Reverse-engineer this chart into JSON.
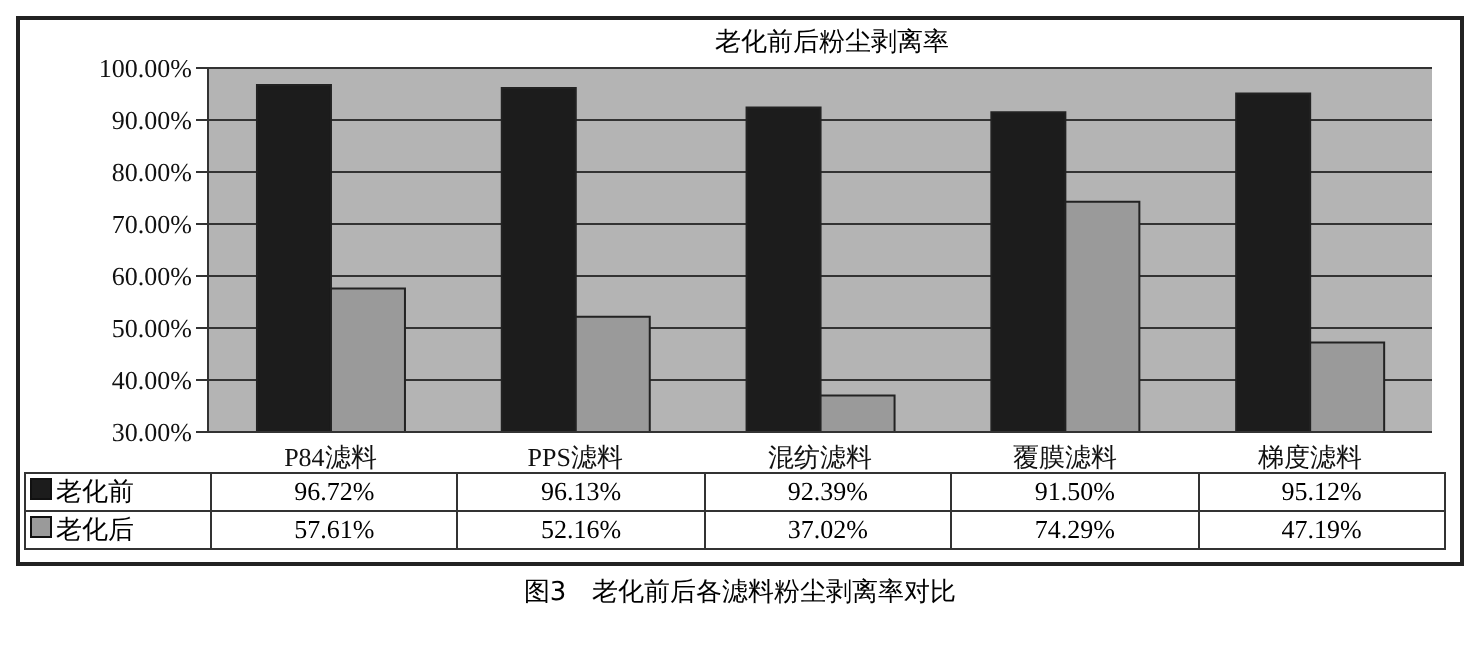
{
  "chart_data": {
    "type": "bar",
    "title": "老化前后粉尘剥离率",
    "categories": [
      "P84滤料",
      "PPS滤料",
      "混纺滤料",
      "覆膜滤料",
      "梯度滤料"
    ],
    "series": [
      {
        "name": "老化前",
        "color": "#1c1c1c",
        "values": [
          96.72,
          96.13,
          92.39,
          91.5,
          95.12
        ],
        "value_labels": [
          "96.72%",
          "96.13%",
          "92.39%",
          "91.50%",
          "95.12%"
        ]
      },
      {
        "name": "老化后",
        "color": "#9a9a9a",
        "values": [
          57.61,
          52.16,
          37.02,
          74.29,
          47.19
        ],
        "value_labels": [
          "57.61%",
          "52.16%",
          "37.02%",
          "74.29%",
          "47.19%"
        ]
      }
    ],
    "ylim": [
      30,
      100
    ],
    "yticks": [
      {
        "value": 30,
        "label": "30.00%"
      },
      {
        "value": 40,
        "label": "40.00%"
      },
      {
        "value": 50,
        "label": "50.00%"
      },
      {
        "value": 60,
        "label": "60.00%"
      },
      {
        "value": 70,
        "label": "70.00%"
      },
      {
        "value": 80,
        "label": "80.00%"
      },
      {
        "value": 90,
        "label": "90.00%"
      },
      {
        "value": 100,
        "label": "100.00%"
      }
    ],
    "grid": "y",
    "legend": "bottom",
    "annotations": [
      "图3　老化前后各滤料粉尘剥离率对比"
    ]
  }
}
